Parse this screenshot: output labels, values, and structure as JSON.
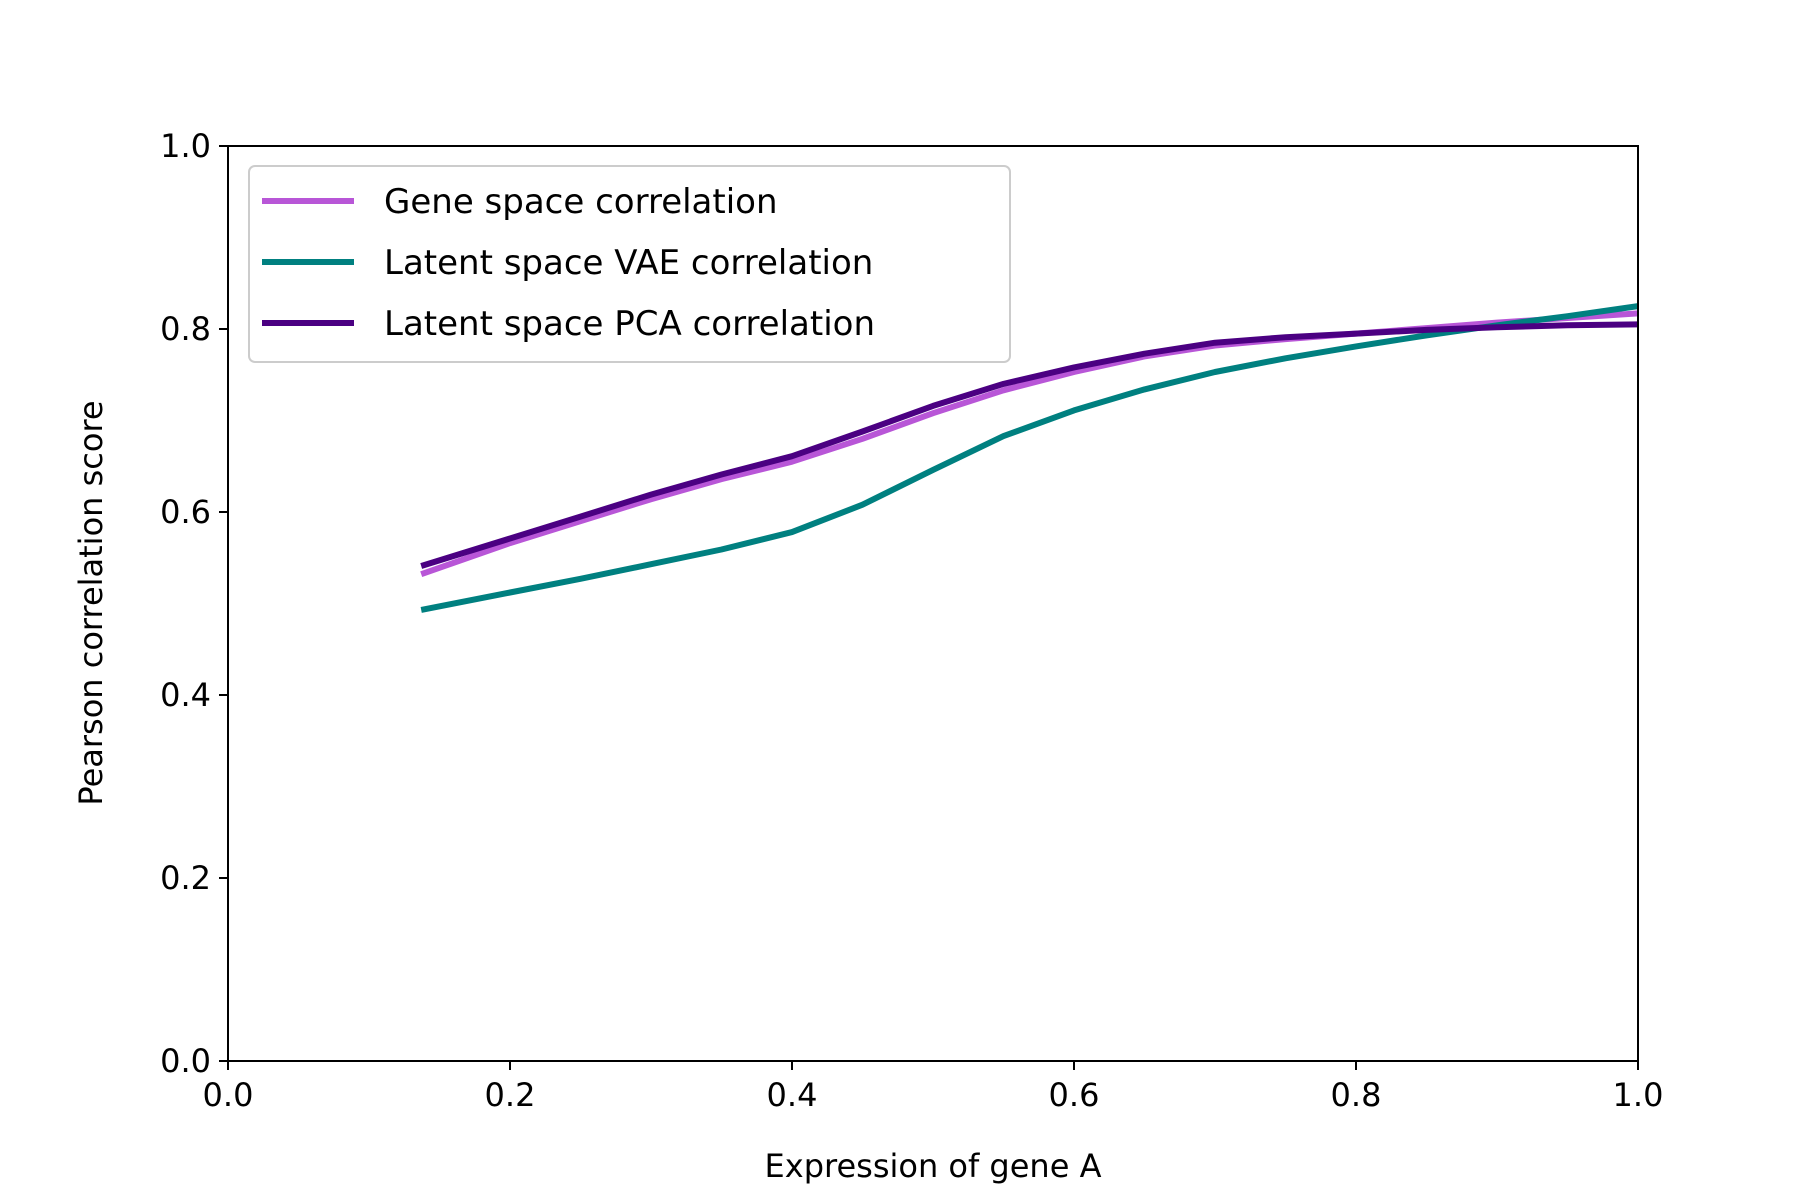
{
  "chart_data": {
    "type": "line",
    "title": "",
    "xlabel": "Expression of gene A",
    "ylabel": "Pearson correlation score",
    "xlim": [
      0.0,
      1.0
    ],
    "ylim": [
      0.0,
      1.0
    ],
    "xticks": [
      "0.0",
      "0.2",
      "0.4",
      "0.6",
      "0.8",
      "1.0"
    ],
    "yticks": [
      "0.0",
      "0.2",
      "0.4",
      "0.6",
      "0.8",
      "1.0"
    ],
    "grid": false,
    "legend_position": "top-left",
    "series": [
      {
        "name": "Gene space correlation",
        "color": "#b856d7",
        "x": [
          0.137,
          0.2,
          0.25,
          0.3,
          0.35,
          0.4,
          0.45,
          0.5,
          0.55,
          0.6,
          0.65,
          0.7,
          0.75,
          0.8,
          0.85,
          0.9,
          0.95,
          1.0
        ],
        "y": [
          0.532,
          0.566,
          0.59,
          0.614,
          0.636,
          0.655,
          0.68,
          0.708,
          0.733,
          0.753,
          0.77,
          0.782,
          0.789,
          0.795,
          0.801,
          0.807,
          0.812,
          0.817
        ]
      },
      {
        "name": "Latent space VAE correlation",
        "color": "#008080",
        "x": [
          0.137,
          0.2,
          0.25,
          0.3,
          0.35,
          0.4,
          0.45,
          0.5,
          0.55,
          0.6,
          0.65,
          0.7,
          0.75,
          0.8,
          0.85,
          0.9,
          0.95,
          1.0
        ],
        "y": [
          0.493,
          0.512,
          0.527,
          0.543,
          0.559,
          0.578,
          0.608,
          0.646,
          0.683,
          0.711,
          0.734,
          0.753,
          0.768,
          0.781,
          0.793,
          0.804,
          0.814,
          0.825
        ]
      },
      {
        "name": "Latent space PCA correlation",
        "color": "#4b0082",
        "x": [
          0.137,
          0.2,
          0.25,
          0.3,
          0.35,
          0.4,
          0.45,
          0.5,
          0.55,
          0.6,
          0.65,
          0.7,
          0.75,
          0.8,
          0.85,
          0.9,
          0.95,
          1.0
        ],
        "y": [
          0.541,
          0.571,
          0.595,
          0.619,
          0.641,
          0.661,
          0.688,
          0.716,
          0.74,
          0.758,
          0.773,
          0.785,
          0.791,
          0.795,
          0.799,
          0.802,
          0.804,
          0.805
        ]
      }
    ]
  }
}
